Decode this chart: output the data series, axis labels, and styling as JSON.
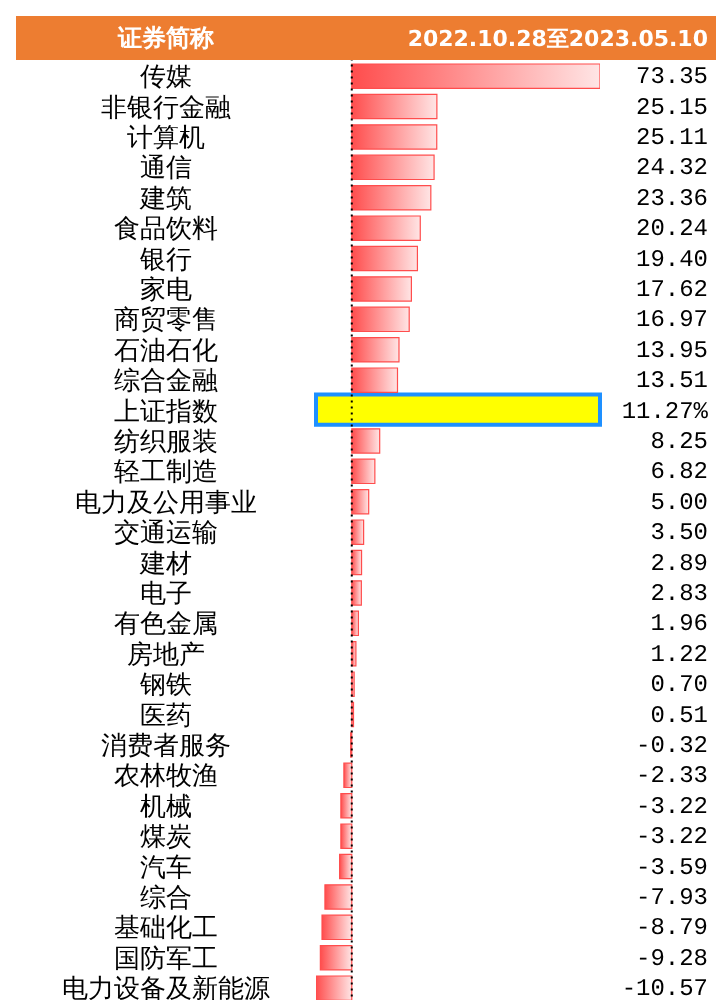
{
  "chart_data": {
    "type": "bar",
    "orientation": "horizontal",
    "title": "2022.10.28至2023.05.10",
    "ylabel": "证券简称",
    "categories": [
      "传媒",
      "非银行金融",
      "计算机",
      "通信",
      "建筑",
      "食品饮料",
      "银行",
      "家电",
      "商贸零售",
      "石油石化",
      "综合金融",
      "上证指数",
      "纺织服装",
      "轻工制造",
      "电力及公用事业",
      "交通运输",
      "建材",
      "电子",
      "有色金属",
      "房地产",
      "钢铁",
      "医药",
      "消费者服务",
      "农林牧渔",
      "机械",
      "煤炭",
      "汽车",
      "综合",
      "基础化工",
      "国防军工",
      "电力设备及新能源"
    ],
    "values": [
      73.35,
      25.15,
      25.11,
      24.32,
      23.36,
      20.24,
      19.4,
      17.62,
      16.97,
      13.95,
      13.51,
      null,
      8.25,
      6.82,
      5.0,
      3.5,
      2.89,
      2.83,
      1.96,
      1.22,
      0.7,
      0.51,
      -0.32,
      -2.33,
      -3.22,
      -3.22,
      -3.59,
      -7.93,
      -8.79,
      -9.28,
      -10.57
    ],
    "value_labels": [
      "73.35",
      "25.15",
      "25.11",
      "24.32",
      "23.36",
      "20.24",
      "19.40",
      "17.62",
      "16.97",
      "13.95",
      "13.51",
      "11.27%",
      "8.25",
      "6.82",
      "5.00",
      "3.50",
      "2.89",
      "2.83",
      "1.96",
      "1.22",
      "0.70",
      "0.51",
      "-0.32",
      "-2.33",
      "-3.22",
      "-3.22",
      "-3.59",
      "-7.93",
      "-8.79",
      "-9.28",
      "-10.57"
    ],
    "color": "#ff4d4d",
    "bands": [
      {
        "axis": "y",
        "from": "上证指数",
        "to": "上证指数",
        "color": "#ffff00"
      }
    ],
    "ref_lines": [
      {
        "axis": "x",
        "value": 0,
        "line_style": "dotted",
        "color": "#000000"
      }
    ]
  }
}
